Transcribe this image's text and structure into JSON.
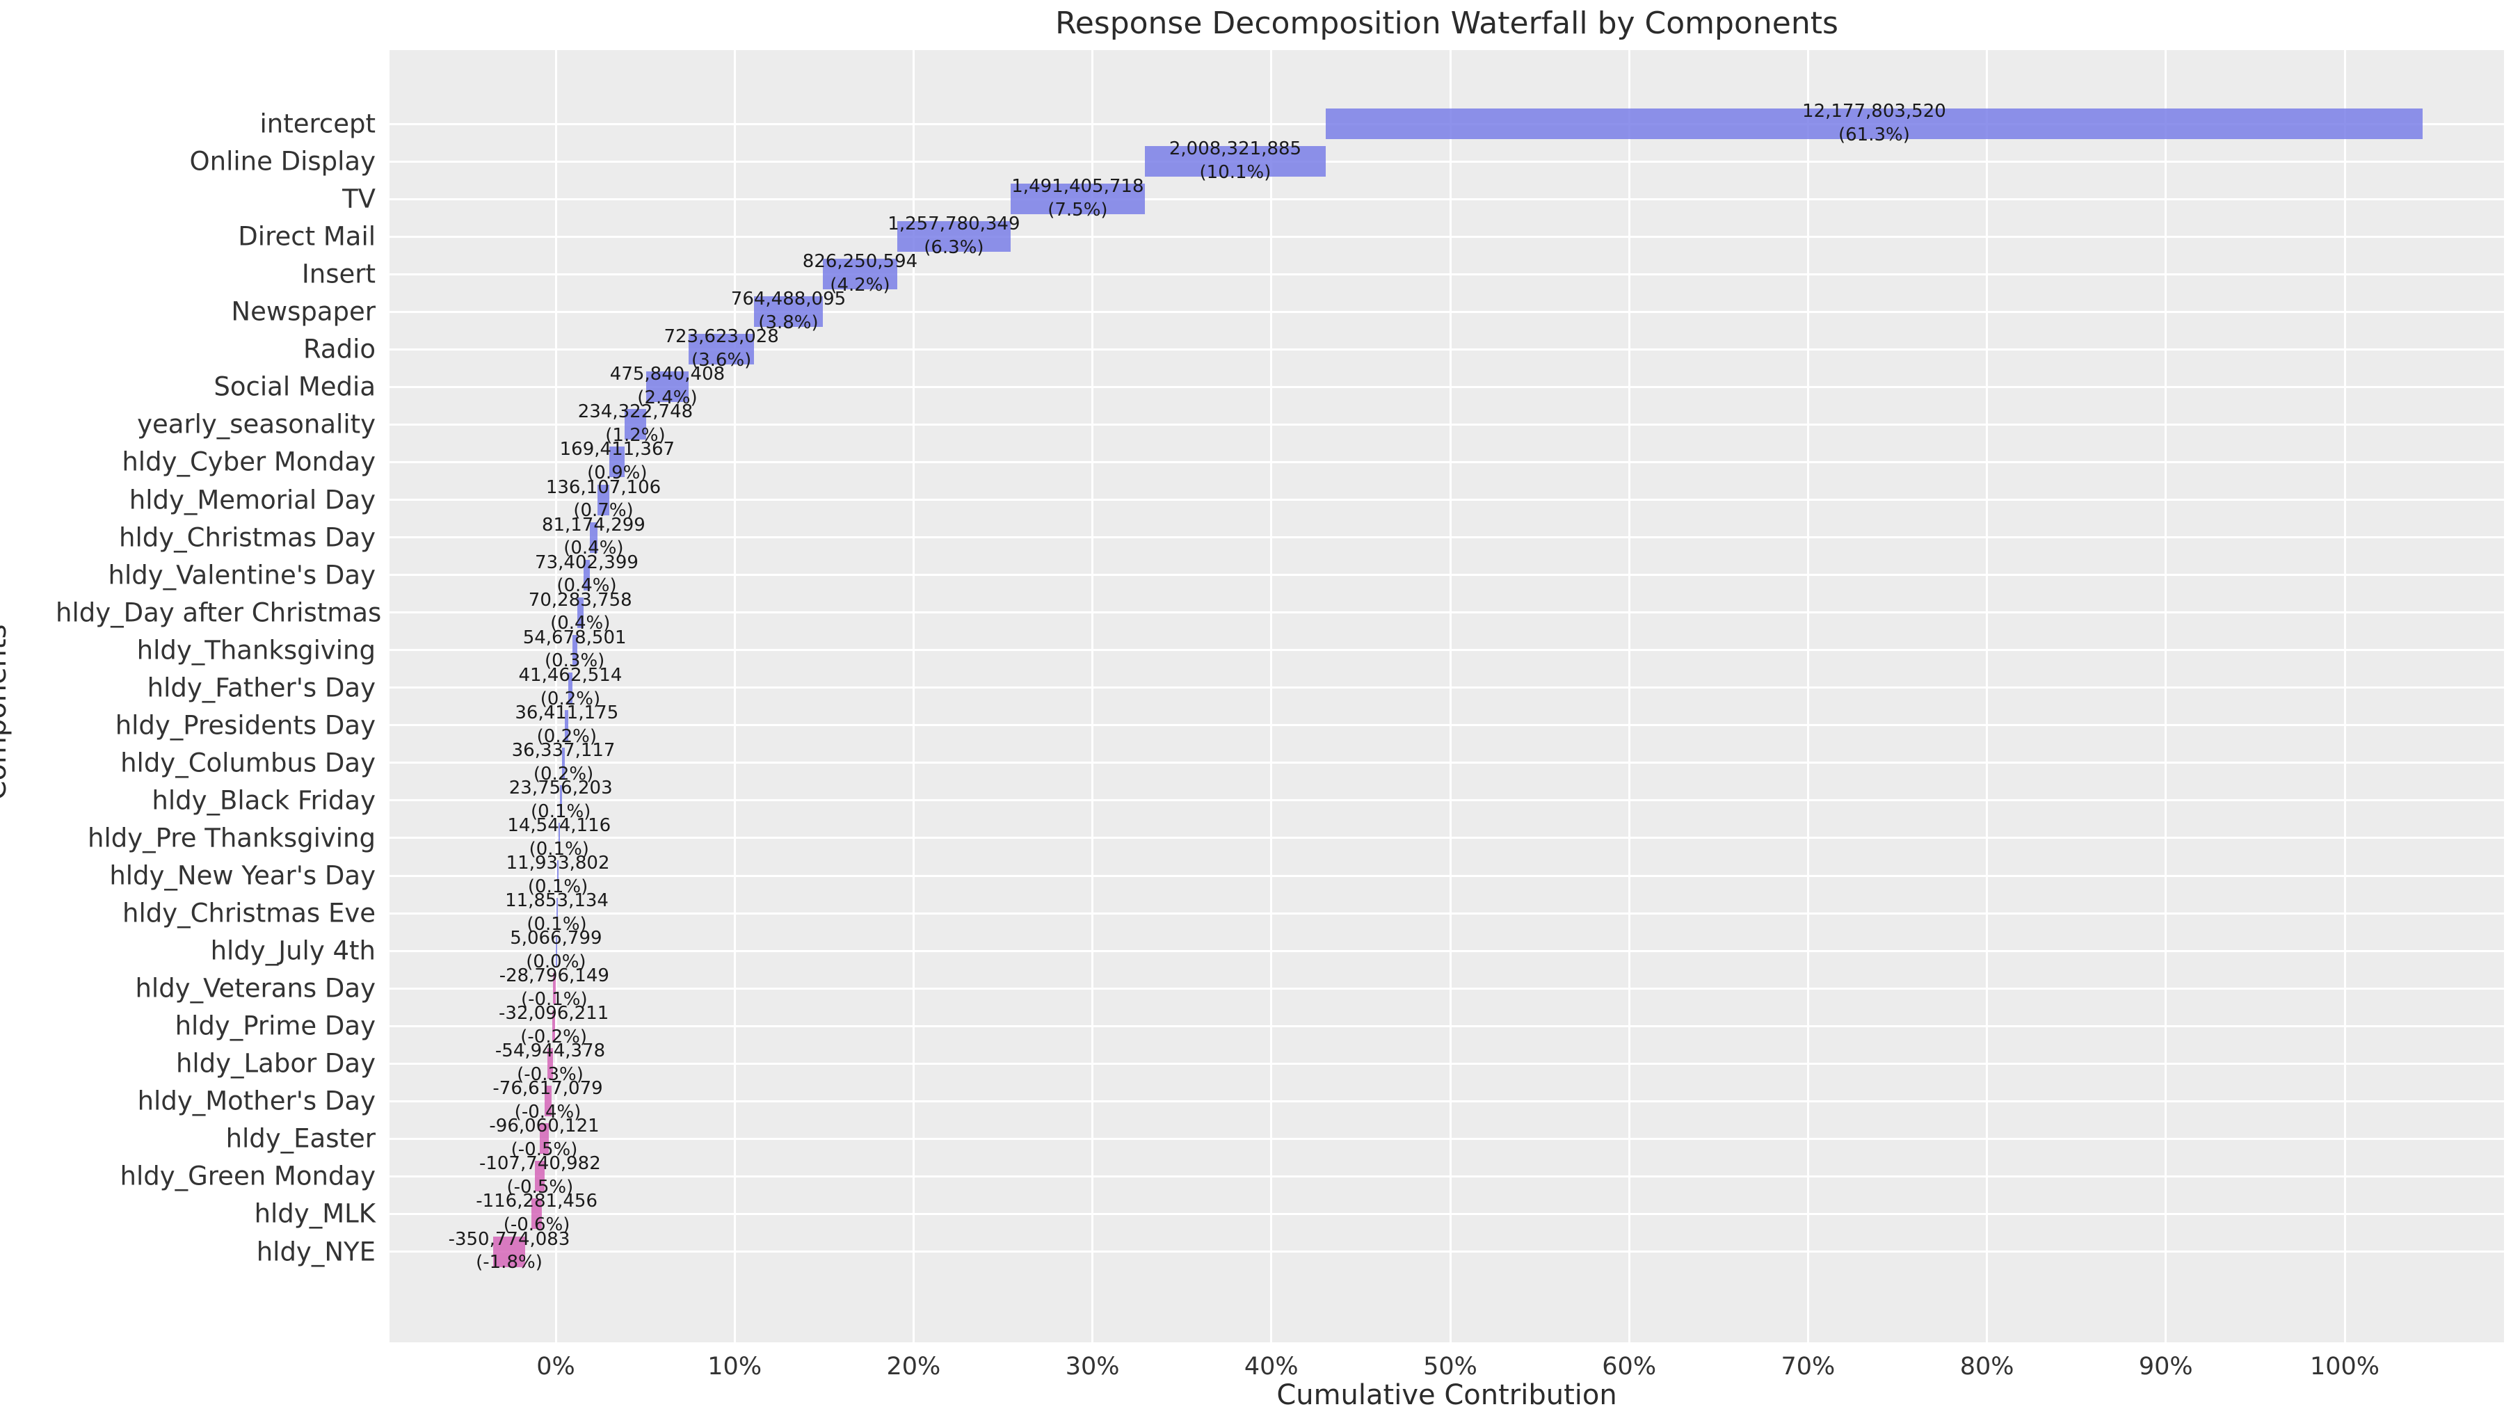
{
  "title": "Response Decomposition Waterfall by Components",
  "x_axis": {
    "label": "Cumulative Contribution",
    "ticks": [
      "0%",
      "10%",
      "20%",
      "30%",
      "40%",
      "50%",
      "60%",
      "70%",
      "80%",
      "90%",
      "100%"
    ]
  },
  "y_axis": {
    "label": "Components"
  },
  "chart_data": {
    "type": "bar",
    "subtype": "horizontal_waterfall",
    "title": "Response Decomposition Waterfall by Components",
    "xlabel": "Cumulative Contribution",
    "ylabel": "Components",
    "xlim": [
      -9.3,
      108.9
    ],
    "x_tick_values": [
      0,
      10,
      20,
      30,
      40,
      50,
      60,
      70,
      80,
      90,
      100
    ],
    "grid": true,
    "legend": false,
    "plot_bg": "#ececec",
    "grid_color": "#ffffff",
    "positive_color": "rgba(122,127,232,0.85)",
    "negative_color": "rgba(213,102,185,0.85)",
    "categories": [
      "intercept",
      "Online Display",
      "TV",
      "Direct Mail",
      "Insert",
      "Newspaper",
      "Radio",
      "Social Media",
      "yearly_seasonality",
      "hldy_Cyber Monday",
      "hldy_Memorial Day",
      "hldy_Christmas Day",
      "hldy_Valentine's Day",
      "hldy_Day after Christmas",
      "hldy_Thanksgiving",
      "hldy_Father's Day",
      "hldy_Presidents Day",
      "hldy_Columbus Day",
      "hldy_Black Friday",
      "hldy_Pre Thanksgiving",
      "hldy_New Year's Day",
      "hldy_Christmas Eve",
      "hldy_July 4th",
      "hldy_Veterans Day",
      "hldy_Prime Day",
      "hldy_Labor Day",
      "hldy_Mother's Day",
      "hldy_Easter",
      "hldy_Green Monday",
      "hldy_MLK",
      "hldy_NYE"
    ],
    "series": [
      {
        "name": "intercept",
        "value": 12177803520,
        "value_label": "12,177,803,520",
        "pct_label": "(61.3%)",
        "start": 43.04,
        "end": 104.35,
        "sign": "positive"
      },
      {
        "name": "Online Display",
        "value": 2008321885,
        "value_label": "2,008,321,885",
        "pct_label": "(10.1%)",
        "start": 32.93,
        "end": 43.04,
        "sign": "positive"
      },
      {
        "name": "TV",
        "value": 1491405718,
        "value_label": "1,491,405,718",
        "pct_label": "(7.5%)",
        "start": 25.42,
        "end": 32.93,
        "sign": "positive"
      },
      {
        "name": "Direct Mail",
        "value": 1257780349,
        "value_label": "1,257,780,349",
        "pct_label": "(6.3%)",
        "start": 19.09,
        "end": 25.42,
        "sign": "positive"
      },
      {
        "name": "Insert",
        "value": 826250594,
        "value_label": "826,250,594",
        "pct_label": "(4.2%)",
        "start": 14.93,
        "end": 19.09,
        "sign": "positive"
      },
      {
        "name": "Newspaper",
        "value": 764488095,
        "value_label": "764,488,095",
        "pct_label": "(3.8%)",
        "start": 11.08,
        "end": 14.93,
        "sign": "positive"
      },
      {
        "name": "Radio",
        "value": 723623028,
        "value_label": "723,623,028",
        "pct_label": "(3.6%)",
        "start": 7.44,
        "end": 11.08,
        "sign": "positive"
      },
      {
        "name": "Social Media",
        "value": 475840408,
        "value_label": "475,840,408",
        "pct_label": "(2.4%)",
        "start": 5.04,
        "end": 7.44,
        "sign": "positive"
      },
      {
        "name": "yearly_seasonality",
        "value": 234322748,
        "value_label": "234,322,748",
        "pct_label": "(1.2%)",
        "start": 3.86,
        "end": 5.04,
        "sign": "positive"
      },
      {
        "name": "hldy_Cyber Monday",
        "value": 169411367,
        "value_label": "169,411,367",
        "pct_label": "(0.9%)",
        "start": 3.01,
        "end": 3.86,
        "sign": "positive"
      },
      {
        "name": "hldy_Memorial Day",
        "value": 136107106,
        "value_label": "136,107,106",
        "pct_label": "(0.7%)",
        "start": 2.32,
        "end": 3.01,
        "sign": "positive"
      },
      {
        "name": "hldy_Christmas Day",
        "value": 81174299,
        "value_label": "81,174,299",
        "pct_label": "(0.4%)",
        "start": 1.91,
        "end": 2.32,
        "sign": "positive"
      },
      {
        "name": "hldy_Valentine's Day",
        "value": 73402399,
        "value_label": "73,402,399",
        "pct_label": "(0.4%)",
        "start": 1.55,
        "end": 1.91,
        "sign": "positive"
      },
      {
        "name": "hldy_Day after Christmas",
        "value": 70283758,
        "value_label": "70,283,758",
        "pct_label": "(0.4%)",
        "start": 1.19,
        "end": 1.55,
        "sign": "positive"
      },
      {
        "name": "hldy_Thanksgiving",
        "value": 54678501,
        "value_label": "54,678,501",
        "pct_label": "(0.3%)",
        "start": 0.92,
        "end": 1.19,
        "sign": "positive"
      },
      {
        "name": "hldy_Father's Day",
        "value": 41462514,
        "value_label": "41,462,514",
        "pct_label": "(0.2%)",
        "start": 0.71,
        "end": 0.92,
        "sign": "positive"
      },
      {
        "name": "hldy_Presidents Day",
        "value": 36411175,
        "value_label": "36,411,175",
        "pct_label": "(0.2%)",
        "start": 0.52,
        "end": 0.71,
        "sign": "positive"
      },
      {
        "name": "hldy_Columbus Day",
        "value": 36337117,
        "value_label": "36,337,117",
        "pct_label": "(0.2%)",
        "start": 0.34,
        "end": 0.52,
        "sign": "positive"
      },
      {
        "name": "hldy_Black Friday",
        "value": 23756203,
        "value_label": "23,756,203",
        "pct_label": "(0.1%)",
        "start": 0.22,
        "end": 0.34,
        "sign": "positive"
      },
      {
        "name": "hldy_Pre Thanksgiving",
        "value": 14544116,
        "value_label": "14,544,116",
        "pct_label": "(0.1%)",
        "start": 0.15,
        "end": 0.22,
        "sign": "positive"
      },
      {
        "name": "hldy_New Year's Day",
        "value": 11933802,
        "value_label": "11,933,802",
        "pct_label": "(0.1%)",
        "start": 0.09,
        "end": 0.15,
        "sign": "positive"
      },
      {
        "name": "hldy_Christmas Eve",
        "value": 11853134,
        "value_label": "11,853,134",
        "pct_label": "(0.1%)",
        "start": 0.03,
        "end": 0.09,
        "sign": "positive"
      },
      {
        "name": "hldy_July 4th",
        "value": 5066799,
        "value_label": "5,066,799",
        "pct_label": "(0.0%)",
        "start": 0.0,
        "end": 0.03,
        "sign": "positive"
      },
      {
        "name": "hldy_Veterans Day",
        "value": -28796149,
        "value_label": "-28,796,149",
        "pct_label": "(-0.1%)",
        "start": -0.16,
        "end": -0.01,
        "sign": "negative"
      },
      {
        "name": "hldy_Prime Day",
        "value": -32096211,
        "value_label": "-32,096,211",
        "pct_label": "(-0.2%)",
        "start": -0.19,
        "end": -0.03,
        "sign": "negative"
      },
      {
        "name": "hldy_Labor Day",
        "value": -54944378,
        "value_label": "-54,944,378",
        "pct_label": "(-0.3%)",
        "start": -0.45,
        "end": -0.17,
        "sign": "negative"
      },
      {
        "name": "hldy_Mother's Day",
        "value": -76617079,
        "value_label": "-76,617,079",
        "pct_label": "(-0.4%)",
        "start": -0.64,
        "end": -0.25,
        "sign": "negative"
      },
      {
        "name": "hldy_Easter",
        "value": -96060121,
        "value_label": "-96,060,121",
        "pct_label": "(-0.5%)",
        "start": -0.88,
        "end": -0.4,
        "sign": "negative"
      },
      {
        "name": "hldy_Green Monday",
        "value": -107740982,
        "value_label": "-107,740,982",
        "pct_label": "(-0.5%)",
        "start": -1.15,
        "end": -0.61,
        "sign": "negative"
      },
      {
        "name": "hldy_MLK",
        "value": -116281456,
        "value_label": "-116,281,456",
        "pct_label": "(-0.6%)",
        "start": -1.36,
        "end": -0.77,
        "sign": "negative"
      },
      {
        "name": "hldy_NYE",
        "value": -350774083,
        "value_label": "-350,774,083",
        "pct_label": "(-1.8%)",
        "start": -3.49,
        "end": -1.72,
        "sign": "negative"
      }
    ]
  }
}
